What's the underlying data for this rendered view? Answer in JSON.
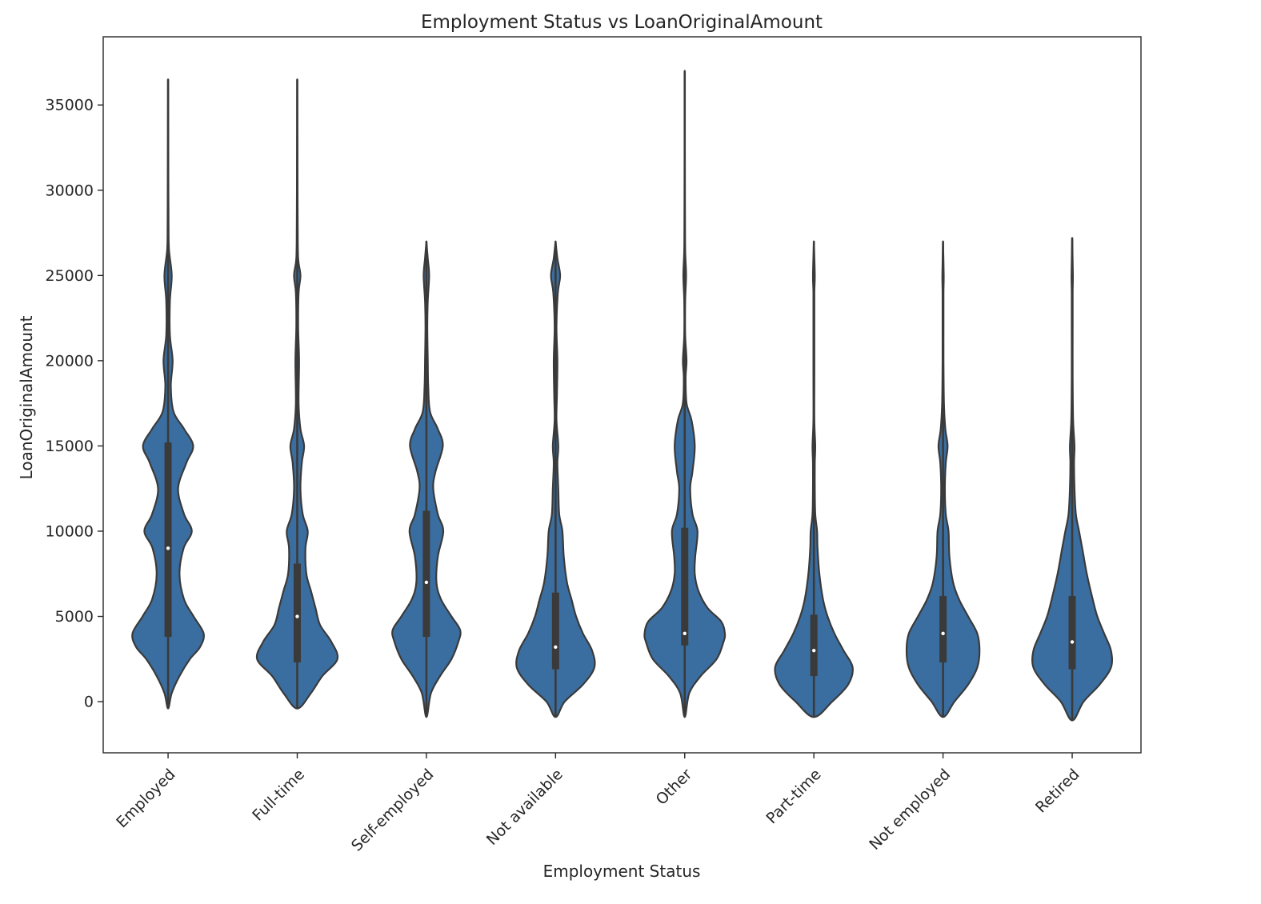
{
  "chart_data": {
    "type": "violin",
    "title": "Employment Status vs LoanOriginalAmount",
    "xlabel": "Employment Status",
    "ylabel": "LoanOriginalAmount",
    "ylim": [
      -3000,
      39000
    ],
    "yticks": [
      0,
      5000,
      10000,
      15000,
      20000,
      25000,
      30000,
      35000
    ],
    "grid": false,
    "legend": "none",
    "colors": {
      "fill": "#3a6ea0",
      "edge": "#3a3a3a",
      "box": "#3a3a3a",
      "median": "#ffffff"
    },
    "categories": [
      "Employed",
      "Full-time",
      "Self-employed",
      "Not available",
      "Other",
      "Part-time",
      "Not employed",
      "Retired"
    ],
    "violins": [
      {
        "category": "Employed",
        "min": -400,
        "max": 36500,
        "q1": 3800,
        "median": 9000,
        "q3": 15200,
        "profile": [
          [
            -400,
            0
          ],
          [
            500,
            0.08
          ],
          [
            1500,
            0.25
          ],
          [
            2500,
            0.48
          ],
          [
            3200,
            0.7
          ],
          [
            4000,
            0.78
          ],
          [
            5000,
            0.56
          ],
          [
            6000,
            0.35
          ],
          [
            7500,
            0.25
          ],
          [
            9000,
            0.34
          ],
          [
            10000,
            0.52
          ],
          [
            11000,
            0.35
          ],
          [
            12500,
            0.22
          ],
          [
            14000,
            0.4
          ],
          [
            15000,
            0.55
          ],
          [
            16000,
            0.35
          ],
          [
            17000,
            0.12
          ],
          [
            18500,
            0.06
          ],
          [
            20000,
            0.1
          ],
          [
            21500,
            0.04
          ],
          [
            23500,
            0.04
          ],
          [
            25000,
            0.08
          ],
          [
            26500,
            0.02
          ],
          [
            28000,
            0.01
          ],
          [
            31500,
            0.005
          ],
          [
            36500,
            0
          ]
        ]
      },
      {
        "category": "Full-time",
        "min": -400,
        "max": 36500,
        "q1": 2300,
        "median": 5000,
        "q3": 8100,
        "profile": [
          [
            -400,
            0
          ],
          [
            500,
            0.3
          ],
          [
            1500,
            0.55
          ],
          [
            2500,
            0.88
          ],
          [
            3500,
            0.75
          ],
          [
            4500,
            0.5
          ],
          [
            5500,
            0.4
          ],
          [
            6500,
            0.3
          ],
          [
            7500,
            0.2
          ],
          [
            9000,
            0.18
          ],
          [
            10000,
            0.23
          ],
          [
            11000,
            0.12
          ],
          [
            12500,
            0.07
          ],
          [
            14000,
            0.1
          ],
          [
            15000,
            0.15
          ],
          [
            16000,
            0.07
          ],
          [
            17500,
            0.03
          ],
          [
            20000,
            0.04
          ],
          [
            22000,
            0.02
          ],
          [
            24000,
            0.03
          ],
          [
            25000,
            0.07
          ],
          [
            26000,
            0.02
          ],
          [
            28000,
            0.01
          ],
          [
            32000,
            0.004
          ],
          [
            36500,
            0
          ]
        ]
      },
      {
        "category": "Self-employed",
        "min": -900,
        "max": 27000,
        "q1": 3800,
        "median": 7000,
        "q3": 11200,
        "profile": [
          [
            -900,
            0
          ],
          [
            500,
            0.1
          ],
          [
            1500,
            0.3
          ],
          [
            2500,
            0.55
          ],
          [
            3500,
            0.7
          ],
          [
            4200,
            0.74
          ],
          [
            5000,
            0.55
          ],
          [
            6000,
            0.32
          ],
          [
            7000,
            0.22
          ],
          [
            8500,
            0.25
          ],
          [
            10000,
            0.37
          ],
          [
            11000,
            0.25
          ],
          [
            12500,
            0.15
          ],
          [
            13500,
            0.2
          ],
          [
            15000,
            0.36
          ],
          [
            16000,
            0.25
          ],
          [
            17000,
            0.08
          ],
          [
            18500,
            0.04
          ],
          [
            20000,
            0.03
          ],
          [
            22000,
            0.02
          ],
          [
            23500,
            0.03
          ],
          [
            25000,
            0.06
          ],
          [
            26000,
            0.03
          ],
          [
            27000,
            0
          ]
        ]
      },
      {
        "category": "Not available",
        "min": -900,
        "max": 27000,
        "q1": 1900,
        "median": 3200,
        "q3": 6400,
        "profile": [
          [
            -900,
            0
          ],
          [
            0,
            0.2
          ],
          [
            1000,
            0.6
          ],
          [
            2000,
            0.85
          ],
          [
            3000,
            0.8
          ],
          [
            4000,
            0.6
          ],
          [
            5000,
            0.45
          ],
          [
            6000,
            0.35
          ],
          [
            7000,
            0.25
          ],
          [
            8500,
            0.18
          ],
          [
            10000,
            0.15
          ],
          [
            11000,
            0.08
          ],
          [
            12500,
            0.06
          ],
          [
            14000,
            0.04
          ],
          [
            15000,
            0.06
          ],
          [
            16500,
            0.02
          ],
          [
            18000,
            0.03
          ],
          [
            20000,
            0.04
          ],
          [
            22000,
            0.02
          ],
          [
            24000,
            0.05
          ],
          [
            25000,
            0.1
          ],
          [
            26000,
            0.04
          ],
          [
            27000,
            0
          ]
        ]
      },
      {
        "category": "Other",
        "min": -900,
        "max": 37000,
        "q1": 3300,
        "median": 4000,
        "q3": 10200,
        "profile": [
          [
            -900,
            0
          ],
          [
            500,
            0.1
          ],
          [
            1500,
            0.35
          ],
          [
            2500,
            0.7
          ],
          [
            3500,
            0.85
          ],
          [
            4000,
            0.88
          ],
          [
            4700,
            0.8
          ],
          [
            5500,
            0.5
          ],
          [
            6500,
            0.3
          ],
          [
            7500,
            0.22
          ],
          [
            8500,
            0.23
          ],
          [
            10000,
            0.28
          ],
          [
            11000,
            0.17
          ],
          [
            12500,
            0.12
          ],
          [
            13500,
            0.17
          ],
          [
            15000,
            0.22
          ],
          [
            16500,
            0.15
          ],
          [
            17500,
            0.04
          ],
          [
            19000,
            0.02
          ],
          [
            20000,
            0.04
          ],
          [
            21500,
            0.01
          ],
          [
            23500,
            0.01
          ],
          [
            25000,
            0.03
          ],
          [
            26500,
            0.01
          ],
          [
            29000,
            0.005
          ],
          [
            37000,
            0
          ]
        ]
      },
      {
        "category": "Part-time",
        "min": -900,
        "max": 27000,
        "q1": 1500,
        "median": 3000,
        "q3": 5100,
        "profile": [
          [
            -900,
            0
          ],
          [
            0,
            0.4
          ],
          [
            1000,
            0.75
          ],
          [
            2000,
            0.85
          ],
          [
            3000,
            0.65
          ],
          [
            4000,
            0.45
          ],
          [
            5000,
            0.3
          ],
          [
            6000,
            0.2
          ],
          [
            7500,
            0.12
          ],
          [
            9000,
            0.08
          ],
          [
            10000,
            0.07
          ],
          [
            11000,
            0.03
          ],
          [
            12500,
            0.02
          ],
          [
            14000,
            0.02
          ],
          [
            15000,
            0.03
          ],
          [
            16500,
            0.01
          ],
          [
            19000,
            0.01
          ],
          [
            22000,
            0.01
          ],
          [
            24000,
            0.01
          ],
          [
            25000,
            0.02
          ],
          [
            27000,
            0
          ]
        ]
      },
      {
        "category": "Not employed",
        "min": -900,
        "max": 27000,
        "q1": 2300,
        "median": 4000,
        "q3": 6200,
        "profile": [
          [
            -900,
            0
          ],
          [
            0,
            0.25
          ],
          [
            1000,
            0.55
          ],
          [
            2000,
            0.75
          ],
          [
            3000,
            0.8
          ],
          [
            4000,
            0.75
          ],
          [
            5000,
            0.55
          ],
          [
            6000,
            0.35
          ],
          [
            7000,
            0.22
          ],
          [
            8500,
            0.14
          ],
          [
            10000,
            0.12
          ],
          [
            11000,
            0.06
          ],
          [
            12500,
            0.04
          ],
          [
            14000,
            0.06
          ],
          [
            15000,
            0.1
          ],
          [
            16000,
            0.05
          ],
          [
            17500,
            0.02
          ],
          [
            20000,
            0.01
          ],
          [
            22000,
            0.01
          ],
          [
            24000,
            0.01
          ],
          [
            25000,
            0.015
          ],
          [
            27000,
            0
          ]
        ]
      },
      {
        "category": "Retired",
        "min": -1100,
        "max": 27200,
        "q1": 1900,
        "median": 3500,
        "q3": 6200,
        "profile": [
          [
            -1100,
            0
          ],
          [
            0,
            0.25
          ],
          [
            1000,
            0.6
          ],
          [
            2000,
            0.85
          ],
          [
            3000,
            0.85
          ],
          [
            4000,
            0.7
          ],
          [
            5000,
            0.55
          ],
          [
            6000,
            0.45
          ],
          [
            7500,
            0.32
          ],
          [
            9000,
            0.22
          ],
          [
            10000,
            0.15
          ],
          [
            11000,
            0.08
          ],
          [
            12500,
            0.05
          ],
          [
            14000,
            0.04
          ],
          [
            15000,
            0.05
          ],
          [
            16500,
            0.02
          ],
          [
            19000,
            0.01
          ],
          [
            22000,
            0.01
          ],
          [
            24000,
            0.01
          ],
          [
            25000,
            0.015
          ],
          [
            27200,
            0
          ]
        ]
      }
    ]
  }
}
